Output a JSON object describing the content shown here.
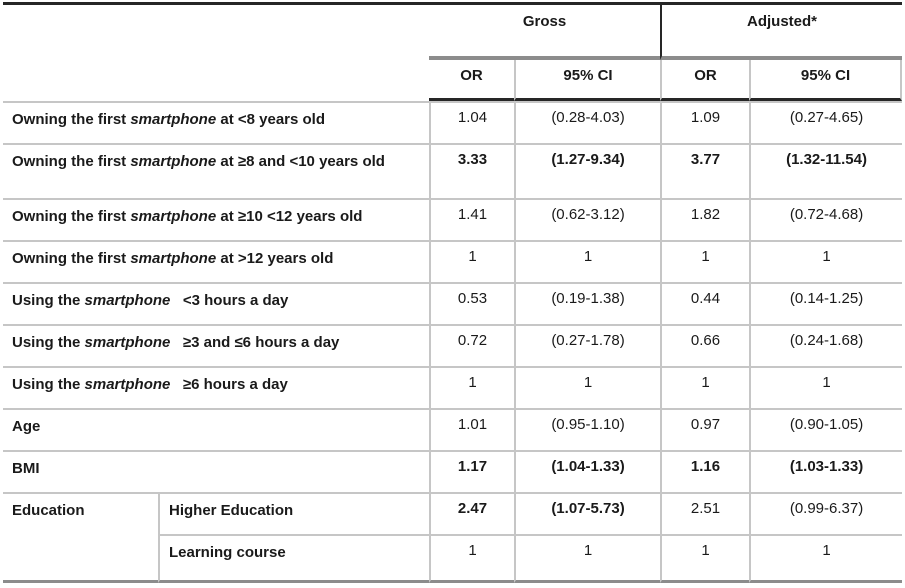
{
  "table": {
    "header": {
      "gross": "Gross",
      "adjusted": "Adjusted*",
      "sub": [
        "OR",
        "95% CI",
        "OR",
        "95% CI"
      ]
    },
    "rows": [
      {
        "label_pre": "Owning the first ",
        "label_italic": "smartphone",
        "label_post": " at <8 years old",
        "values": [
          "1.04",
          "(0.28-4.03)",
          "1.09",
          "(0.27-4.65)"
        ],
        "bold": [
          false,
          false,
          false,
          false
        ]
      },
      {
        "label_pre": "Owning the first ",
        "label_italic": "smartphone",
        "label_post": " at ≥8 and <10 years old",
        "values": [
          "3.33",
          "(1.27-9.34)",
          "3.77",
          "(1.32-11.54)"
        ],
        "bold": [
          true,
          true,
          true,
          true
        ]
      },
      {
        "label_pre": "Owning the first ",
        "label_italic": "smartphone",
        "label_post": " at ≥10 <12 years old",
        "values": [
          "1.41",
          "(0.62-3.12)",
          "1.82",
          "(0.72-4.68)"
        ],
        "bold": [
          false,
          false,
          false,
          false
        ]
      },
      {
        "label_pre": "Owning the first ",
        "label_italic": "smartphone",
        "label_post": " at >12 years old",
        "values": [
          "1",
          "1",
          "1",
          "1"
        ],
        "bold": [
          false,
          false,
          false,
          false
        ]
      },
      {
        "label_pre": "Using the ",
        "label_italic": "smartphone",
        "label_post": "   <3 hours a day",
        "values": [
          "0.53",
          "(0.19-1.38)",
          "0.44",
          "(0.14-1.25)"
        ],
        "bold": [
          false,
          false,
          false,
          false
        ]
      },
      {
        "label_pre": "Using the ",
        "label_italic": "smartphone",
        "label_post": "   ≥3 and ≤6 hours a day",
        "values": [
          "0.72",
          "(0.27-1.78)",
          "0.66",
          "(0.24-1.68)"
        ],
        "bold": [
          false,
          false,
          false,
          false
        ]
      },
      {
        "label_pre": "Using the ",
        "label_italic": "smartphone",
        "label_post": "   ≥6 hours a day",
        "values": [
          "1",
          "1",
          "1",
          "1"
        ],
        "bold": [
          false,
          false,
          false,
          false
        ]
      },
      {
        "label_pre": "Age",
        "label_italic": "",
        "label_post": "",
        "values": [
          "1.01",
          "(0.95-1.10)",
          "0.97",
          "(0.90-1.05)"
        ],
        "bold": [
          false,
          false,
          false,
          false
        ]
      },
      {
        "label_pre": "BMI",
        "label_italic": "",
        "label_post": "",
        "values": [
          "1.17",
          "(1.04-1.33)",
          "1.16",
          "(1.03-1.33)"
        ],
        "bold": [
          true,
          true,
          true,
          true
        ]
      },
      {
        "group_label": "Education",
        "sublabel": "Higher Education",
        "values": [
          "2.47",
          "(1.07-5.73)",
          "2.51",
          "(0.99-6.37)"
        ],
        "bold": [
          true,
          true,
          false,
          false
        ]
      },
      {
        "sublabel": "Learning course",
        "values": [
          "1",
          "1",
          "1",
          "1"
        ],
        "bold": [
          false,
          false,
          false,
          false
        ]
      }
    ]
  },
  "colors": {
    "rule_black": "#262626",
    "rule_medium_gray": "#8c8c8c",
    "rule_light_gray": "#c6c6c6",
    "text": "#1a1a1a",
    "background": "#ffffff"
  }
}
